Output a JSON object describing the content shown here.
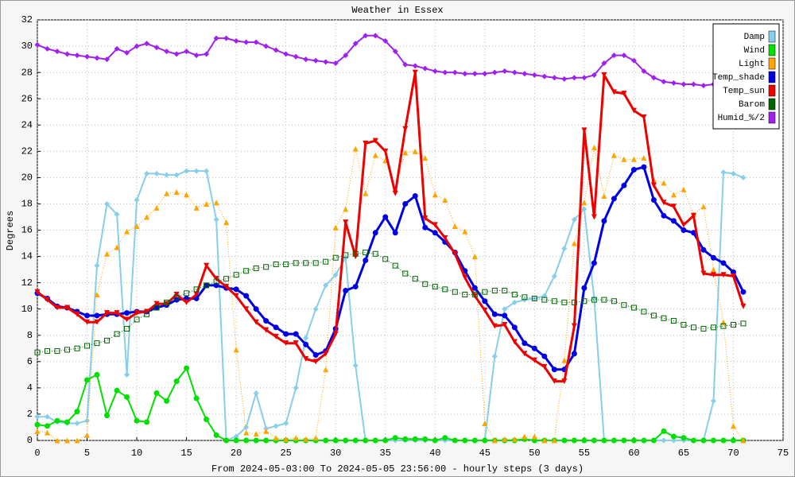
{
  "chart_data": {
    "type": "line",
    "title": "Weather in Essex",
    "xlabel": "From 2024-05-03:00 To 2024-05-05 23:56:00 - hourly steps (3 days)",
    "ylabel": "Degrees",
    "x": [
      0,
      1,
      2,
      3,
      4,
      5,
      6,
      7,
      8,
      9,
      10,
      11,
      12,
      13,
      14,
      15,
      16,
      17,
      18,
      19,
      20,
      21,
      22,
      23,
      24,
      25,
      26,
      27,
      28,
      29,
      30,
      31,
      32,
      33,
      34,
      35,
      36,
      37,
      38,
      39,
      40,
      41,
      42,
      43,
      44,
      45,
      46,
      47,
      48,
      49,
      50,
      51,
      52,
      53,
      54,
      55,
      56,
      57,
      58,
      59,
      60,
      61,
      62,
      63,
      64,
      65,
      66,
      67,
      68,
      69,
      70,
      71
    ],
    "xlim": [
      0,
      75
    ],
    "xticks": [
      0,
      5,
      10,
      15,
      20,
      25,
      30,
      35,
      40,
      45,
      50,
      55,
      60,
      65,
      70,
      75
    ],
    "ylim": [
      0,
      32
    ],
    "yticks": [
      0,
      2,
      4,
      6,
      8,
      10,
      12,
      14,
      16,
      18,
      20,
      22,
      24,
      26,
      28,
      30,
      32
    ],
    "grid": true,
    "legend": "upper right",
    "series": [
      {
        "name": "Damp",
        "color": "#87ceeb",
        "marker": "diamond",
        "linestyle": "solid",
        "linewidth": 2,
        "values": [
          1.8,
          1.8,
          1.4,
          1.3,
          1.3,
          1.5,
          13.3,
          18.0,
          17.2,
          5.0,
          18.3,
          20.3,
          20.3,
          20.2,
          20.2,
          20.5,
          20.5,
          20.5,
          16.8,
          0.0,
          0.3,
          1.0,
          3.6,
          0.9,
          1.1,
          1.3,
          4.0,
          7.8,
          10.0,
          11.8,
          12.6,
          13.9,
          5.7,
          0,
          0,
          0,
          0,
          0,
          0,
          0,
          0,
          0,
          0,
          0,
          0,
          0,
          6.4,
          10.0,
          10.5,
          10.7,
          10.8,
          11.0,
          12.5,
          14.6,
          16.8,
          17.6,
          10.8,
          0,
          0,
          0,
          0,
          0,
          0,
          0,
          0,
          0,
          0,
          0,
          3.0,
          20.4,
          20.3,
          20.0
        ]
      },
      {
        "name": "Wind",
        "color": "#00e000",
        "marker": "circle",
        "linestyle": "solid",
        "linewidth": 2,
        "values": [
          1.2,
          1.1,
          1.5,
          1.4,
          2.2,
          4.6,
          5.0,
          1.9,
          3.8,
          3.3,
          1.5,
          1.4,
          3.6,
          3.0,
          4.5,
          5.5,
          3.2,
          1.6,
          0.4,
          0,
          0,
          0,
          0,
          0,
          0,
          0,
          0,
          0,
          0,
          0,
          0,
          0,
          0,
          0,
          0,
          0,
          0.2,
          0.1,
          0.1,
          0.1,
          0.0,
          0.2,
          0,
          0,
          0,
          0,
          0,
          0,
          0,
          0.1,
          0,
          0,
          0,
          0,
          0,
          0,
          0,
          0,
          0,
          0,
          0,
          0,
          0,
          0.7,
          0.3,
          0.2,
          0,
          0,
          0,
          0,
          0,
          0
        ]
      },
      {
        "name": "Light",
        "color": "#ffa500",
        "marker": "triangle",
        "linestyle": "dotted",
        "linewidth": 1,
        "values": [
          0.7,
          0.6,
          0.0,
          0.0,
          0.0,
          0.4,
          11.1,
          14.2,
          14.7,
          15.9,
          16.3,
          17.0,
          17.7,
          18.8,
          18.9,
          18.7,
          17.7,
          18.0,
          18.1,
          16.6,
          6.9,
          0.6,
          0.5,
          0.7,
          0.2,
          0.1,
          0.2,
          0.1,
          0.2,
          5.4,
          16.2,
          17.6,
          22.2,
          18.8,
          21.7,
          21.3,
          19.1,
          21.9,
          22.0,
          21.5,
          18.7,
          18.3,
          16.3,
          15.9,
          14.0,
          1.3,
          0.0,
          0.1,
          0.1,
          0.3,
          0.3,
          0.0,
          0.0,
          6.1,
          15.0,
          18.1,
          22.3,
          18.6,
          21.7,
          21.4,
          21.4,
          21.5,
          19.8,
          19.6,
          18.7,
          19.1,
          17.2,
          17.8,
          13.0,
          9.0,
          1.1,
          0.0
        ]
      },
      {
        "name": "Temp_shade",
        "color": "#0000e6",
        "marker": "circle",
        "linestyle": "solid",
        "linewidth": 3,
        "values": [
          11.2,
          10.8,
          10.2,
          10.1,
          9.8,
          9.5,
          9.5,
          9.6,
          9.6,
          9.7,
          9.8,
          9.8,
          10.1,
          10.3,
          10.7,
          10.8,
          10.8,
          11.8,
          11.8,
          11.6,
          11.5,
          11.0,
          10.0,
          9.1,
          8.6,
          8.1,
          8.1,
          7.3,
          6.5,
          6.8,
          8.5,
          11.4,
          11.7,
          13.7,
          15.8,
          17.0,
          15.8,
          18.0,
          18.6,
          16.2,
          15.8,
          15.1,
          14.3,
          12.9,
          11.6,
          10.6,
          9.6,
          9.5,
          8.6,
          7.4,
          7.0,
          6.4,
          5.4,
          5.4,
          6.6,
          11.6,
          13.5,
          16.7,
          18.4,
          19.4,
          20.6,
          20.8,
          18.3,
          17.1,
          16.7,
          16.0,
          15.8,
          14.5,
          13.9,
          13.5,
          12.8,
          11.3
        ]
      },
      {
        "name": "Temp_sun",
        "color": "#ee0000",
        "marker": "triangle-down",
        "linestyle": "solid",
        "linewidth": 3,
        "values": [
          11.3,
          10.7,
          10.1,
          10.1,
          9.6,
          9.0,
          9.0,
          9.7,
          9.7,
          9.2,
          9.7,
          9.8,
          10.4,
          10.4,
          11.1,
          10.5,
          11.1,
          13.3,
          12.3,
          11.7,
          11.0,
          10.0,
          9.0,
          8.4,
          7.9,
          7.4,
          7.4,
          6.2,
          6.0,
          6.6,
          8.1,
          16.6,
          14.0,
          22.6,
          22.8,
          22.0,
          18.8,
          23.7,
          28.0,
          16.9,
          16.4,
          15.4,
          14.2,
          12.4,
          11.0,
          9.9,
          8.7,
          8.8,
          7.5,
          6.6,
          6.1,
          5.6,
          4.5,
          4.5,
          8.7,
          23.6,
          17.0,
          27.8,
          26.5,
          26.4,
          25.1,
          24.6,
          19.4,
          18.1,
          17.8,
          16.4,
          17.1,
          12.7,
          12.6,
          12.6,
          12.5,
          10.2
        ]
      },
      {
        "name": "Barom",
        "color": "#006400",
        "marker": "square-open",
        "linestyle": "dotted",
        "linewidth": 1,
        "values": [
          6.7,
          6.8,
          6.8,
          6.9,
          7.0,
          7.2,
          7.4,
          7.6,
          8.1,
          8.5,
          9.2,
          9.6,
          10.1,
          10.5,
          10.9,
          11.2,
          11.5,
          11.8,
          12.1,
          12.3,
          12.6,
          12.9,
          13.1,
          13.2,
          13.4,
          13.4,
          13.5,
          13.5,
          13.5,
          13.6,
          13.9,
          14.1,
          14.2,
          14.3,
          14.2,
          13.8,
          13.3,
          12.7,
          12.3,
          11.9,
          11.7,
          11.5,
          11.3,
          11.1,
          11.1,
          11.3,
          11.4,
          11.4,
          11.1,
          10.9,
          10.8,
          10.7,
          10.6,
          10.5,
          10.5,
          10.6,
          10.7,
          10.7,
          10.6,
          10.3,
          10.1,
          9.8,
          9.5,
          9.3,
          9.1,
          8.8,
          8.6,
          8.5,
          8.6,
          8.7,
          8.8,
          8.9
        ]
      },
      {
        "name": "Humid_%/2",
        "color": "#a020f0",
        "marker": "diamond",
        "linestyle": "solid",
        "linewidth": 2,
        "values": [
          30.1,
          29.8,
          29.6,
          29.4,
          29.3,
          29.2,
          29.1,
          29.0,
          29.8,
          29.5,
          30.0,
          30.2,
          29.9,
          29.6,
          29.4,
          29.6,
          29.3,
          29.4,
          30.6,
          30.6,
          30.4,
          30.3,
          30.3,
          30.0,
          29.7,
          29.4,
          29.2,
          29.0,
          28.9,
          28.8,
          28.7,
          29.3,
          30.2,
          30.8,
          30.8,
          30.4,
          29.6,
          28.6,
          28.5,
          28.3,
          28.1,
          28.0,
          28.0,
          27.9,
          27.9,
          27.9,
          28.0,
          28.1,
          28.0,
          27.9,
          27.8,
          27.7,
          27.6,
          27.5,
          27.6,
          27.6,
          27.8,
          28.7,
          29.3,
          29.3,
          28.9,
          28.1,
          27.6,
          27.3,
          27.2,
          27.1,
          27.1,
          27.0,
          27.1,
          27.1,
          27.2,
          27.3
        ]
      }
    ]
  }
}
